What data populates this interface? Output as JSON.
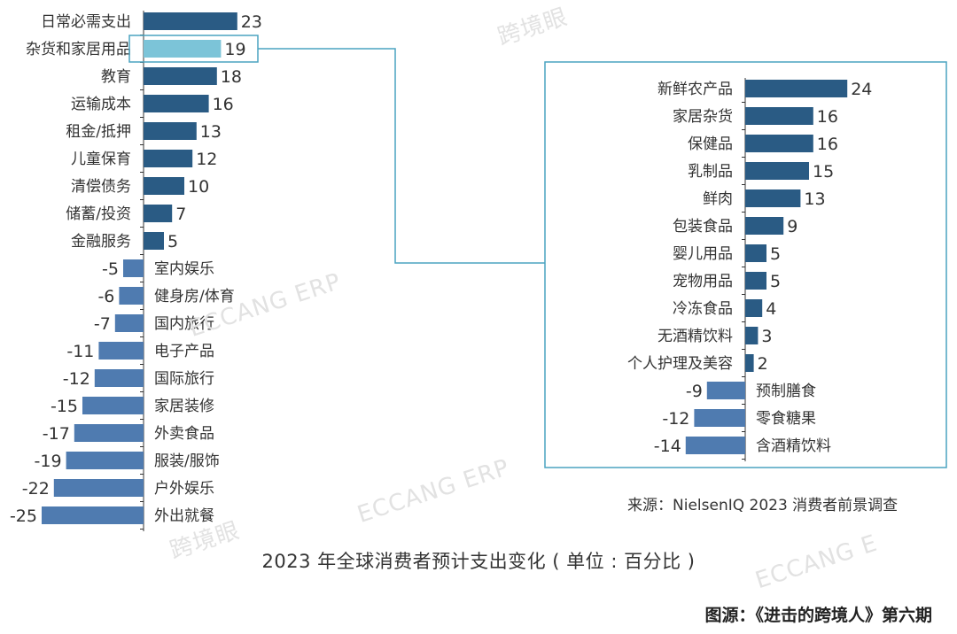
{
  "chart_data": [
    {
      "type": "bar",
      "orientation": "horizontal",
      "categories": [
        "日常必需支出",
        "杂货和家居用品",
        "教育",
        "运输成本",
        "租金/抵押",
        "儿童保育",
        "清偿债务",
        "储蓄/投资",
        "金融服务",
        "室内娱乐",
        "健身房/体育",
        "国内旅行",
        "电子产品",
        "国际旅行",
        "家居装修",
        "外卖食品",
        "服装/服饰",
        "户外娱乐",
        "外出就餐"
      ],
      "values": [
        23,
        19,
        18,
        16,
        13,
        12,
        10,
        7,
        5,
        -5,
        -6,
        -7,
        -11,
        -12,
        -15,
        -17,
        -19,
        -22,
        -25
      ],
      "value_labels": [
        "23",
        "19",
        "18",
        "16",
        "13",
        "12",
        "10",
        "7",
        "5",
        "-5",
        "-6",
        "-7",
        "-11",
        "-12",
        "-15",
        "-17",
        "-19",
        "-22",
        "-25"
      ],
      "highlighted_category": "杂货和家居用品"
    },
    {
      "type": "bar",
      "orientation": "horizontal",
      "categories": [
        "新鲜农产品",
        "家居杂货",
        "保健品",
        "乳制品",
        "鲜肉",
        "包装食品",
        "婴儿用品",
        "宠物用品",
        "冷冻食品",
        "无酒精饮料",
        "个人护理及美容",
        "预制膳食",
        "零食糖果",
        "含酒精饮料"
      ],
      "values": [
        24,
        16,
        16,
        15,
        13,
        9,
        5,
        5,
        4,
        3,
        2,
        -9,
        -12,
        -14
      ],
      "value_labels": [
        "24",
        "16",
        "16",
        "15",
        "13",
        "9",
        "5",
        "5",
        "4",
        "3",
        "2",
        "-9",
        "-12",
        "-14"
      ]
    }
  ],
  "caption": "2023 年全球消费者预计支出变化 ( 单位 : 百分比 )",
  "source": "来源：NielsenIQ 2023 消费者前景调查",
  "credit": "图源：《进击的跨境人》第六期",
  "watermarks": [
    "跨境眼",
    "ECCANG ERP",
    "ECCANG E"
  ],
  "colors": {
    "positive": "#2a5b84",
    "negative": "#4f7bb0",
    "highlight": "#7cc4d8",
    "connector": "#4aa3c0",
    "axis": "#333333"
  }
}
